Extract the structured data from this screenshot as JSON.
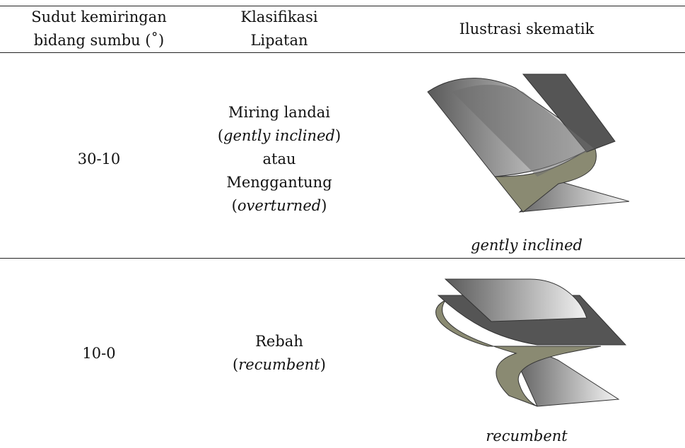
{
  "table": {
    "header": [
      [
        "Sudut kemiringan",
        "bidang sumbu (˚)"
      ],
      [
        "Klasifikasi",
        "Lipatan"
      ],
      [
        "Ilustrasi skematik"
      ]
    ],
    "rows": [
      {
        "angle": "30-10",
        "classification": [
          [
            "Miring landai"
          ],
          [
            "(",
            "gently inclined",
            ")"
          ],
          [
            "atau"
          ],
          [
            "Menggantung"
          ],
          [
            "(",
            "overturned",
            ")"
          ]
        ],
        "caption": "gently inclined"
      },
      {
        "angle": "10-0",
        "classification": [
          [
            "Rebah"
          ],
          [
            "(",
            "recumbent",
            ")"
          ]
        ],
        "caption": "recumbent"
      }
    ]
  }
}
